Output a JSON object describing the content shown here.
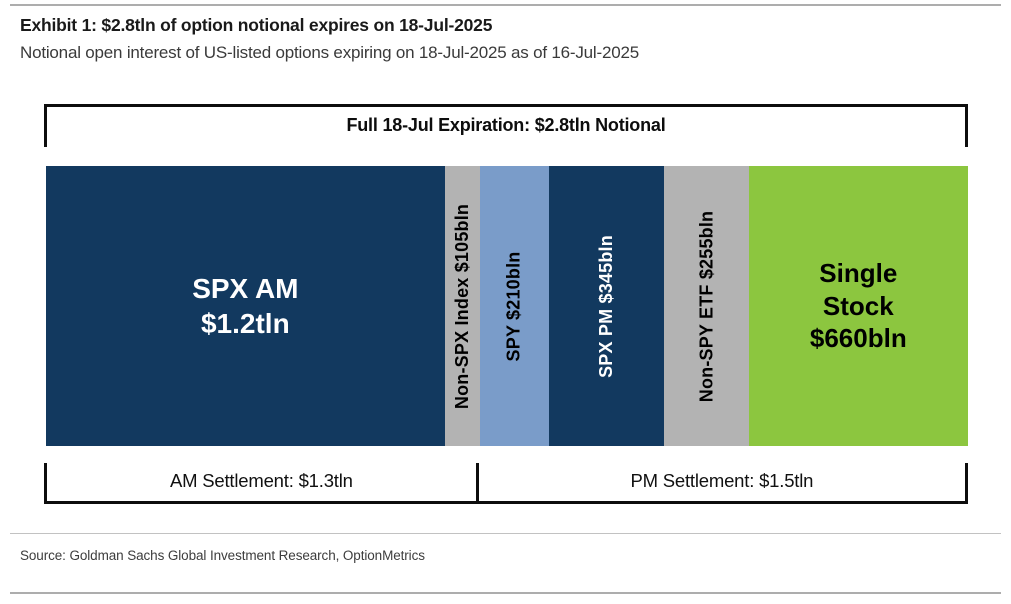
{
  "page": {
    "title": "Exhibit 1: $2.8tln of option notional expires on 18-Jul-2025",
    "subtitle": "Notional open interest of US-listed options expiring on 18-Jul-2025 as of 16-Jul-2025",
    "source": "Source: Goldman Sachs Global Investment Research, OptionMetrics"
  },
  "colors": {
    "navy": "#12395f",
    "gray": "#b3b3b3",
    "light_blue": "#7a9cc9",
    "green": "#8cc63f",
    "bracket_line": "#0d0d0d",
    "rule_gray": "#adadad"
  },
  "chart_data": {
    "type": "bar",
    "orientation": "horizontal-stacked",
    "title": "Full 18-Jul Expiration: $2.8tln Notional",
    "unit": "USD bln notional",
    "total_bln": 2775,
    "categories": [
      "SPX AM",
      "Non-SPX Index",
      "SPY",
      "SPX PM",
      "Non-SPY ETF",
      "Single Stock"
    ],
    "values": [
      1200,
      105,
      210,
      345,
      255,
      660
    ],
    "segments": [
      {
        "name": "SPX AM",
        "label": "SPX AM $1.2tln",
        "display": [
          "SPX AM",
          "$1.2tln"
        ],
        "value_bln": 1200,
        "color": "#12395f",
        "text_color": "#ffffff",
        "text_rotation": 0
      },
      {
        "name": "Non-SPX Index",
        "label": "Non-SPX Index $105bln",
        "value_bln": 105,
        "color": "#b3b3b3",
        "text_color": "#000000",
        "text_rotation": -90
      },
      {
        "name": "SPY",
        "label": "SPY $210bln",
        "value_bln": 210,
        "color": "#7a9cc9",
        "text_color": "#000000",
        "text_rotation": -90
      },
      {
        "name": "SPX PM",
        "label": "SPX PM $345bln",
        "value_bln": 345,
        "color": "#12395f",
        "text_color": "#ffffff",
        "text_rotation": -90
      },
      {
        "name": "Non-SPY ETF",
        "label": "Non-SPY ETF $255bln",
        "value_bln": 255,
        "color": "#b3b3b3",
        "text_color": "#000000",
        "text_rotation": -90
      },
      {
        "name": "Single Stock",
        "label": "Single Stock $660bln",
        "display": [
          "Single",
          "Stock",
          "$660bln"
        ],
        "value_bln": 660,
        "color": "#8cc63f",
        "text_color": "#000000",
        "text_rotation": 0
      }
    ],
    "top_bracket": {
      "label": "Full 18-Jul Expiration: $2.8tln Notional"
    },
    "bottom_brackets": [
      {
        "name": "AM Settlement",
        "label": "AM Settlement: $1.3tln",
        "value_bln": 1305,
        "covers": [
          "SPX AM",
          "Non-SPX Index"
        ]
      },
      {
        "name": "PM Settlement",
        "label": "PM Settlement: $1.5tln",
        "value_bln": 1470,
        "covers": [
          "SPY",
          "SPX PM",
          "Non-SPY ETF",
          "Single Stock"
        ]
      }
    ],
    "legend": "none",
    "grid": false
  }
}
